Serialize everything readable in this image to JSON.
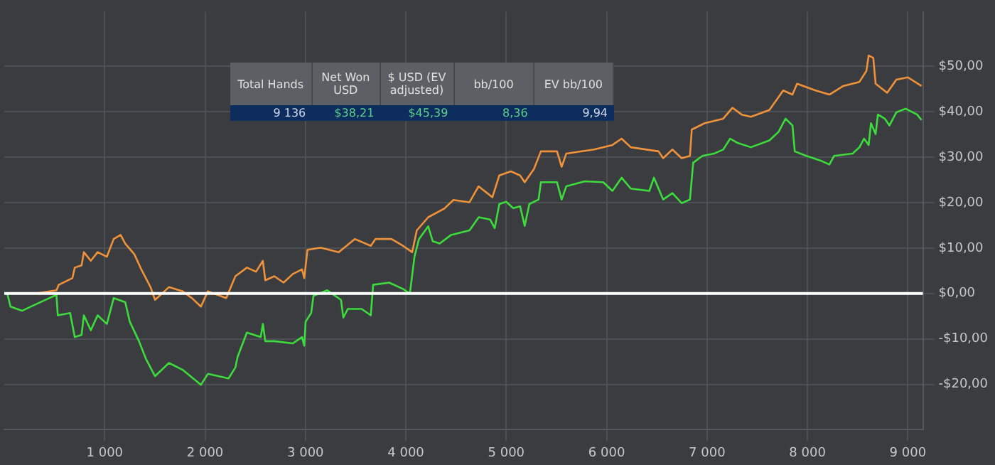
{
  "chart_data": {
    "type": "line",
    "series": [
      {
        "color": "#f0923a",
        "x": [
          30,
          313,
          520,
          542,
          679,
          702,
          770,
          793,
          862,
          930,
          1022,
          1090,
          1159,
          1205,
          1297,
          1365,
          1457,
          1502,
          1640,
          1776,
          1868,
          1959,
          2028,
          2211,
          2302,
          2417,
          2508,
          2576,
          2600,
          2690,
          2782,
          2874,
          2966,
          2988,
          3020,
          3149,
          3331,
          3491,
          3651,
          3697,
          3857,
          3971,
          4063,
          4109,
          4223,
          4383,
          4474,
          4634,
          4724,
          4862,
          4931,
          5046,
          5138,
          5184,
          5276,
          5345,
          5506,
          5552,
          5598,
          5874,
          6058,
          6149,
          6241,
          6517,
          6563,
          6655,
          6747,
          6830,
          6848,
          6977,
          7161,
          7253,
          7345,
          7437,
          7621,
          7759,
          7851,
          7897,
          8081,
          8219,
          8357,
          8518,
          8587,
          8610,
          8656,
          8679,
          8794,
          8886,
          9000,
          9136
        ],
        "values": [
          0,
          0,
          0.7,
          1.9,
          3.4,
          5.7,
          6.2,
          9.1,
          7.2,
          9.1,
          8.1,
          12,
          12.9,
          11,
          8.6,
          5.3,
          1.4,
          -1.4,
          1.4,
          0.5,
          -1,
          -2.9,
          0.5,
          -1,
          3.8,
          5.7,
          4.8,
          7.2,
          2.9,
          3.8,
          2.4,
          4.3,
          5.3,
          3.4,
          9.6,
          10.1,
          9.1,
          12,
          10.5,
          12,
          12,
          10.5,
          9.1,
          13.9,
          16.8,
          18.7,
          20.6,
          20.1,
          23.6,
          21.2,
          26,
          26.9,
          26,
          24.5,
          27.4,
          31.3,
          31.3,
          27.9,
          30.8,
          31.7,
          32.7,
          34.1,
          32.2,
          31.3,
          29.8,
          31.7,
          29.8,
          30.3,
          36.1,
          37.5,
          38.5,
          40.9,
          39.4,
          38.9,
          40.4,
          44.7,
          43.8,
          46.2,
          44.7,
          43.8,
          45.7,
          46.6,
          49,
          52.4,
          51.9,
          46.2,
          44.2,
          47.1,
          47.6,
          45.7
        ]
      },
      {
        "color": "#3ddc3d",
        "x": [
          30,
          62,
          176,
          313,
          450,
          520,
          533,
          656,
          702,
          770,
          793,
          862,
          930,
          1022,
          1090,
          1205,
          1250,
          1342,
          1411,
          1502,
          1640,
          1776,
          1959,
          2028,
          2234,
          2302,
          2325,
          2417,
          2554,
          2576,
          2600,
          2690,
          2874,
          2966,
          2988,
          3002,
          3057,
          3080,
          3217,
          3354,
          3377,
          3422,
          3560,
          3651,
          3674,
          3834,
          3971,
          4040,
          4086,
          4131,
          4223,
          4268,
          4337,
          4451,
          4634,
          4726,
          4839,
          4885,
          4931,
          5000,
          5069,
          5138,
          5184,
          5230,
          5322,
          5345,
          5506,
          5552,
          5598,
          5782,
          5966,
          6058,
          6149,
          6241,
          6425,
          6471,
          6563,
          6655,
          6747,
          6830,
          6862,
          6954,
          7069,
          7161,
          7230,
          7299,
          7437,
          7621,
          7713,
          7782,
          7851,
          7874,
          7989,
          8127,
          8219,
          8265,
          8449,
          8518,
          8564,
          8610,
          8633,
          8679,
          8702,
          8771,
          8817,
          8886,
          8978,
          9093,
          9136
        ],
        "values": [
          0,
          -2.9,
          -3.8,
          -2.4,
          -1,
          -0.3,
          -4.8,
          -4.3,
          -9.6,
          -9.1,
          -4.8,
          -8.1,
          -4.8,
          -6.7,
          -1,
          -1.9,
          -6.2,
          -10.5,
          -14.4,
          -18.2,
          -15.3,
          -16.8,
          -20.1,
          -17.7,
          -18.7,
          -16.3,
          -13.9,
          -8.6,
          -9.6,
          -6.7,
          -10.5,
          -10.5,
          -11,
          -9.6,
          -11.5,
          -6.2,
          -4.3,
          -0.5,
          0.7,
          -1.4,
          -5.3,
          -3.4,
          -3.4,
          -4.8,
          1.9,
          2.4,
          1,
          0,
          8.1,
          12,
          14.8,
          11.5,
          11,
          12.9,
          13.9,
          16.8,
          16.3,
          14.4,
          19.7,
          20.2,
          18.8,
          19.2,
          14.9,
          19.7,
          20.7,
          24.5,
          24.5,
          20.7,
          23.6,
          24.7,
          24.5,
          22.6,
          25.5,
          23.1,
          22.6,
          25.5,
          20.7,
          22.1,
          19.9,
          20.7,
          28.8,
          30.3,
          30.8,
          31.7,
          34.1,
          33.2,
          32.2,
          33.7,
          35.6,
          38.5,
          37,
          31.3,
          30.3,
          29.3,
          28.4,
          30.3,
          30.8,
          32.2,
          34.1,
          32.7,
          37.5,
          35.1,
          39.4,
          38.5,
          37,
          39.9,
          40.7,
          39.4,
          38.2
        ]
      }
    ],
    "xlim": [
      0,
      9150
    ],
    "xticks": [
      {
        "value": 1000,
        "label": "1 000"
      },
      {
        "value": 2000,
        "label": "2 000"
      },
      {
        "value": 3000,
        "label": "3 000"
      },
      {
        "value": 4000,
        "label": "4 000"
      },
      {
        "value": 5000,
        "label": "5 000"
      },
      {
        "value": 6000,
        "label": "6 000"
      },
      {
        "value": 7000,
        "label": "7 000"
      },
      {
        "value": 8000,
        "label": "8 000"
      },
      {
        "value": 9000,
        "label": "9 000"
      }
    ],
    "ylim": [
      -30,
      62
    ],
    "yticks": [
      {
        "value": -20,
        "label": "-$20,00"
      },
      {
        "value": -10,
        "label": "-$10,00"
      },
      {
        "value": 0,
        "label": "$0,00"
      },
      {
        "value": 10,
        "label": "$10,00"
      },
      {
        "value": 20,
        "label": "$20,00"
      },
      {
        "value": 30,
        "label": "$30,00"
      },
      {
        "value": 40,
        "label": "$40,00"
      },
      {
        "value": 50,
        "label": "$50,00"
      }
    ],
    "ref_lines": [
      {
        "axis": "y",
        "value": 0,
        "color": "#ffffff"
      }
    ],
    "grid": true,
    "legend": false,
    "marker": "none",
    "line_style": "solid",
    "annotations": [
      "Total Hands",
      "Net Won USD",
      "$ USD (EV adjusted)",
      "bb/100",
      "EV bb/100",
      "9 136",
      "$38,21",
      "$45,39",
      "8,36",
      "9,94"
    ]
  }
}
